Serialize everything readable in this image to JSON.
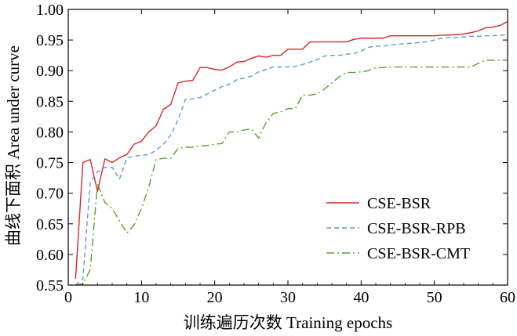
{
  "chart_data": {
    "type": "line",
    "xlabel": "训练遍历次数 Training epochs",
    "ylabel": "曲线下面积 Area under curve",
    "xlim": [
      0,
      60
    ],
    "ylim": [
      0.55,
      1.0
    ],
    "x_ticks": [
      0,
      10,
      20,
      30,
      40,
      50,
      60
    ],
    "y_ticks": [
      0.55,
      0.6,
      0.65,
      0.7,
      0.75,
      0.8,
      0.85,
      0.9,
      0.95,
      1.0
    ],
    "x_tick_labels": [
      "0",
      "10",
      "20",
      "30",
      "40",
      "50",
      "60"
    ],
    "y_tick_labels": [
      "0.55",
      "0.60",
      "0.65",
      "0.70",
      "0.75",
      "0.80",
      "0.85",
      "0.90",
      "0.95",
      "1.00"
    ],
    "grid": false,
    "legend_position": "bottom-right",
    "x": [
      1,
      2,
      3,
      4,
      5,
      6,
      7,
      8,
      9,
      10,
      11,
      12,
      13,
      14,
      15,
      16,
      17,
      18,
      19,
      20,
      21,
      22,
      23,
      24,
      25,
      26,
      27,
      28,
      29,
      30,
      31,
      32,
      33,
      34,
      35,
      36,
      37,
      38,
      39,
      40,
      41,
      42,
      43,
      44,
      45,
      46,
      47,
      48,
      49,
      50,
      51,
      52,
      53,
      54,
      55,
      56,
      57,
      58,
      59,
      60
    ],
    "series": [
      {
        "name": "CSE-BSR",
        "color": "#d62728",
        "dash": "solid",
        "values": [
          0.56,
          0.75,
          0.755,
          0.703,
          0.756,
          0.75,
          0.758,
          0.763,
          0.78,
          0.785,
          0.8,
          0.81,
          0.837,
          0.845,
          0.88,
          0.883,
          0.884,
          0.905,
          0.905,
          0.902,
          0.901,
          0.906,
          0.914,
          0.915,
          0.92,
          0.924,
          0.922,
          0.925,
          0.925,
          0.935,
          0.935,
          0.935,
          0.947,
          0.947,
          0.947,
          0.947,
          0.947,
          0.947,
          0.951,
          0.953,
          0.953,
          0.953,
          0.953,
          0.957,
          0.957,
          0.957,
          0.957,
          0.957,
          0.957,
          0.957,
          0.958,
          0.958,
          0.959,
          0.96,
          0.962,
          0.965,
          0.97,
          0.971,
          0.974,
          0.98
        ]
      },
      {
        "name": "CSE-BSR-RPB",
        "color": "#5b9bd5",
        "dash": "dashed",
        "values": [
          0.55,
          0.56,
          0.718,
          0.735,
          0.742,
          0.742,
          0.723,
          0.758,
          0.76,
          0.762,
          0.763,
          0.77,
          0.78,
          0.795,
          0.82,
          0.853,
          0.854,
          0.856,
          0.862,
          0.868,
          0.874,
          0.878,
          0.885,
          0.888,
          0.891,
          0.898,
          0.902,
          0.906,
          0.906,
          0.906,
          0.907,
          0.91,
          0.914,
          0.918,
          0.924,
          0.925,
          0.925,
          0.927,
          0.928,
          0.932,
          0.938,
          0.94,
          0.94,
          0.942,
          0.943,
          0.944,
          0.945,
          0.946,
          0.947,
          0.95,
          0.953,
          0.954,
          0.954,
          0.955,
          0.956,
          0.956,
          0.957,
          0.957,
          0.958,
          0.958
        ]
      },
      {
        "name": "CSE-BSR-CMT",
        "color": "#5aa02c",
        "dash": "dashdot",
        "values": [
          0.55,
          0.552,
          0.575,
          0.715,
          0.685,
          0.675,
          0.655,
          0.635,
          0.648,
          0.675,
          0.71,
          0.755,
          0.757,
          0.757,
          0.773,
          0.775,
          0.775,
          0.777,
          0.778,
          0.78,
          0.781,
          0.8,
          0.8,
          0.803,
          0.805,
          0.79,
          0.815,
          0.83,
          0.833,
          0.838,
          0.838,
          0.86,
          0.86,
          0.862,
          0.87,
          0.88,
          0.89,
          0.897,
          0.897,
          0.898,
          0.9,
          0.905,
          0.905,
          0.906,
          0.906,
          0.906,
          0.906,
          0.906,
          0.906,
          0.906,
          0.906,
          0.906,
          0.906,
          0.906,
          0.906,
          0.912,
          0.917,
          0.917,
          0.917,
          0.917
        ]
      }
    ]
  }
}
